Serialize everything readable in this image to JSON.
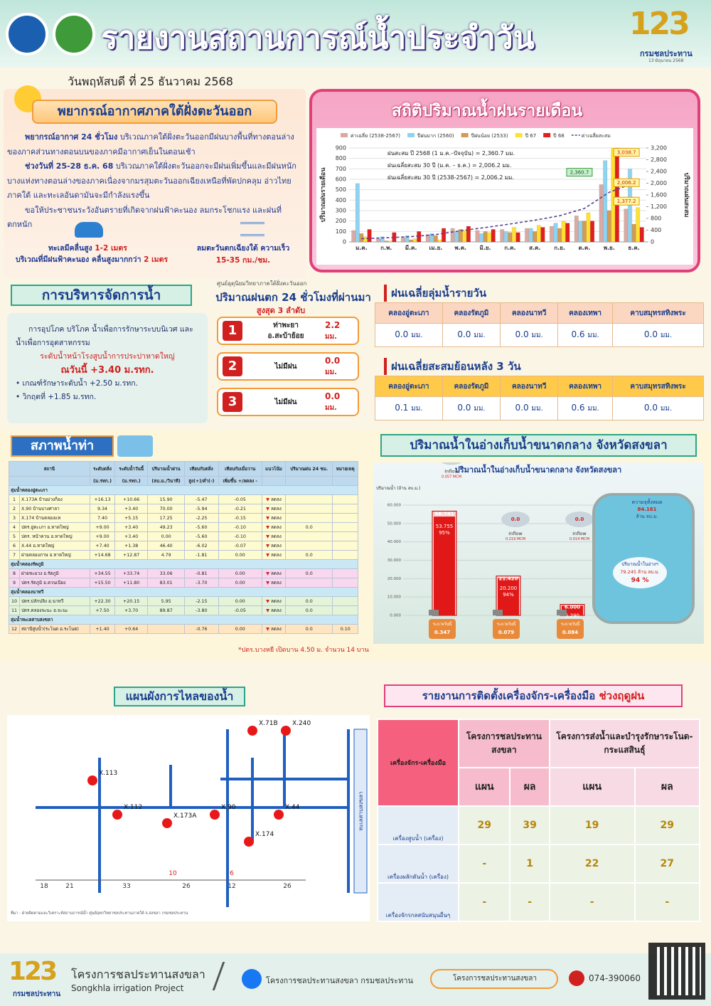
{
  "header": {
    "title": "รายงานสถานการณ์น้ำประจำวัน",
    "logo_number": "123",
    "logo_org": "กรมชลประทาน",
    "logo_date": "13 มิถุนายน 2568"
  },
  "date": "วันพฤหัสบดี ที่ 25 ธันวาคม 2568",
  "weather": {
    "title": "พยากรณ์อากาศภาคใต้ฝั่งตะวันออก",
    "paragraphs": [
      {
        "lead": "พยากรณ์อากาศ 24 ชั่วโมง",
        "text": "บริเวณภาคใต้ฝั่งตะวันออกมีฝนบางพื้นที่ทางตอนล่างของภาคส่วนทางตอนบนของภาคมีอากาศเย็นในตอนเช้า"
      },
      {
        "lead": "ช่วงวันที่ 25-28 ธ.ค. 68",
        "text": "บริเวณภาคใต้ฝั่งตะวันออกจะมีฝนเพิ่มขึ้นและมีฝนหนักบางแห่งทางตอนล่างของภาคเนื่องจากมรสุมตะวันออกเฉียงเหนือที่พัดปกคลุม อ่าวไทย ภาคใต้ และทะเลอันดามันจะมีกำลังแรงขึ้น"
      },
      {
        "lead": "ขอให้ประชาชนระวังอันตรายที่เกิดจากฝนฟ้าคะนอง ลมกระโชกแรง และฝนที่ตกหนัก",
        "text": null
      }
    ],
    "wave_title": "ทะเลมีคลื่นสูง",
    "wave_height": "1-2 เมตร",
    "wave_storm": "บริเวณที่มีฝนฟ้าคะนอง คลื่นสูงมากกว่า",
    "wave_storm_height": "2 เมตร",
    "wind": "ลมตะวันตกเฉียงใต้ ความเร็ว",
    "wind_speed": "15-35 กม./ชม."
  },
  "chart_data": {
    "type": "bar",
    "title": "สถิติปริมาณน้ำฝนรายเดือน",
    "ylabel": "ปริมาณฝนรายเดือน",
    "y2label": "ปริมาณฝนสะสม",
    "categories": [
      "ม.ค.",
      "ก.พ.",
      "มี.ค.",
      "เม.ย.",
      "พ.ค.",
      "มิ.ย.",
      "ก.ค.",
      "ส.ค.",
      "ก.ย.",
      "ต.ค.",
      "พ.ย.",
      "ธ.ค."
    ],
    "series": [
      {
        "name": "ค่าเฉลี่ย (2538-2567)",
        "color": "#d9aaa3",
        "values": [
          110,
          30,
          40,
          70,
          130,
          110,
          120,
          130,
          150,
          250,
          550,
          316
        ]
      },
      {
        "name": "ปีฝนมาก (2560)",
        "color": "#8fd3f0",
        "values": [
          560,
          50,
          60,
          80,
          100,
          80,
          100,
          130,
          180,
          200,
          780,
          700
        ]
      },
      {
        "name": "ปีฝนน้อย (2533)",
        "color": "#d29a55",
        "values": [
          80,
          10,
          20,
          60,
          120,
          100,
          90,
          100,
          130,
          200,
          300,
          170
        ]
      },
      {
        "name": "ปี 67",
        "color": "#ffe033",
        "values": [
          50,
          10,
          30,
          20,
          110,
          90,
          140,
          160,
          200,
          280,
          900,
          330
        ]
      },
      {
        "name": "ปี 68",
        "color": "#e02020",
        "values": [
          120,
          90,
          100,
          130,
          150,
          120,
          90,
          140,
          180,
          200,
          900,
          140
        ]
      },
      {
        "name": "ค่าเฉลี่ยสะสม",
        "color": "#5b3f8f",
        "type": "line",
        "line_style": "dashed",
        "axis": "y2",
        "values": [
          110,
          140,
          180,
          250,
          380,
          490,
          610,
          740,
          890,
          1140,
          1690,
          2006
        ]
      }
    ],
    "ylim": [
      0,
      900
    ],
    "yticks": [
      0,
      100,
      200,
      300,
      400,
      500,
      600,
      700,
      800,
      900
    ],
    "y2lim": [
      0,
      3200
    ],
    "y2ticks": [
      0,
      400,
      800,
      {
        "value": 1200,
        "label": "1,200"
      },
      {
        "value": 1600,
        "label": "1,600"
      },
      {
        "value": 2000,
        "label": "2,000"
      },
      {
        "value": 2400,
        "label": "2,400"
      },
      {
        "value": 2800,
        "label": "2,800"
      },
      {
        "value": 3200,
        "label": "3,200"
      }
    ],
    "grid": true,
    "annotations": [
      "ฝนสะสม ปี 2568 (1 ม.ค.–ปัจจุบัน) = 2,360.7 มม.",
      "ฝนเฉลี่ยสะสม 30 ปี (ม.ค. – ธ.ค.) = 2,006.2 มม.",
      "ฝนเฉลี่ยสะสม 30 ปี (2538-2567) = 2,006.2 มม."
    ],
    "point_labels": [
      {
        "value": 3038.7,
        "label": "3,038.7"
      },
      {
        "value": 2006.2,
        "label": "2,006.2"
      },
      {
        "value": 1377.2,
        "label": "1,377.2"
      },
      {
        "value": 2360.7,
        "label": "2,360.7"
      }
    ]
  },
  "management": {
    "title": "การบริหารจัดการน้ำ",
    "text": "การอุปโภค บริโภค น้ำเพื่อการรักษาระบบนิเวศ และน้ำเพื่อการอุตสาหกรรม",
    "sub": "ระดับน้ำหน้าโรงสูบน้ำการประปาหาดใหญ่",
    "level": "ณวันนี้ +3.40 ม.รทก.",
    "bullets": [
      "เกณฑ์รักษาระดับน้ำ +2.50 ม.รทก.",
      "วิกฤตที่ +1.85 ม.รทก."
    ]
  },
  "rain_top": {
    "source": "ศูนย์อุตุนิยมวิทยาภาคใต้ฝั่งตะวันออก",
    "title": "ปริมาณฝนตก 24 ชั่วโมงที่ผ่านมา",
    "subtitle": "สูงสุด 3 ลำดับ",
    "unit": "มม.",
    "items": [
      {
        "rank": "1",
        "station": [
          "ท่าพะยา",
          "อ.สะบ้าย้อย"
        ],
        "amount": "2.2"
      },
      {
        "rank": "2",
        "station": [
          "ไม่มีฝน"
        ],
        "amount": "0.0"
      },
      {
        "rank": "3",
        "station": [
          "ไม่มีฝน"
        ],
        "amount": "0.0"
      }
    ]
  },
  "basin_daily": {
    "title": "ฝนเฉลี่ยลุ่มน้ำรายวัน",
    "headers": [
      "คลองอู่ตะเภา",
      "คลองรัตภูมิ",
      "คลองนาทวี",
      "คลองเทพา",
      "คาบสมุทรสทิงพระ"
    ],
    "values": [
      "0.0",
      "0.0",
      "0.0",
      "0.6",
      "0.0"
    ],
    "unit": "มม."
  },
  "basin_3day": {
    "title": "ฝนเฉลี่ยสะสมย้อนหลัง 3 วัน",
    "headers": [
      "คลองอู่ตะเภา",
      "คลองรัตภูมิ",
      "คลองนาทวี",
      "คลองเทพา",
      "คาบสมุทรสทิงพระ"
    ],
    "values": [
      "0.1",
      "0.0",
      "0.0",
      "0.6",
      "0.0"
    ],
    "unit": "มม."
  },
  "water_table": {
    "title": "สภาพน้ำท่า",
    "columns": [
      "สถานี",
      "ระดับตลิ่ง",
      "ระดับน้ำวันนี้",
      "ปริมาณน้ำผ่าน",
      "เทียบกับตลิ่ง",
      "เทียบกับเมื่อวาน",
      "แนวโน้ม",
      "ปริมาณฝน 24 ชม.",
      "หมายเหตุ"
    ],
    "units": [
      "(ม.รทก.)",
      "(ม.รทก.)",
      "(ลบ.ม./วินาที)",
      "สูง(+)/ต่ำ(-)",
      "เพิ่มขึ้น +/ลดลง -"
    ],
    "groups": [
      {
        "name": "ลุ่มน้ำคลองอู่ตะเภา",
        "rows": [
          [
            "1",
            "X.173A บ้านม่วงก็อง",
            "+16.13",
            "+10.66",
            "15.90",
            "-5.47",
            "-0.05",
            "ลดลง",
            null,
            null
          ],
          [
            "2",
            "X.90 บ้านบางศาลา",
            "9.34",
            "+3.40",
            "70.00",
            "-5.94",
            "-0.21",
            "ลดลง",
            null,
            null
          ],
          [
            "3",
            "X.174 บ้านคลองแห",
            "7.40",
            "+5.15",
            "17.25",
            "-2.25",
            "-0.15",
            "ลดลง",
            null,
            null
          ],
          [
            "4",
            "ปตร.อู่ตะเภา อ.หาดใหญ่",
            "+9.00",
            "+3.40",
            "49.23",
            "-5.60",
            "-0.10",
            "ลดลง",
            "0.0",
            null
          ],
          [
            "5",
            "ปตร. หน้าควน อ.หาดใหญ่",
            "+9.00",
            "+3.40",
            "0.00",
            "-5.60",
            "-0.10",
            "ลดลง",
            null,
            null
          ],
          [
            "6",
            "X.44 อ.หาดใหญ่",
            "+7.40",
            "+1.38",
            "46.40",
            "-6.02",
            "-0.07",
            "ลดลง",
            null,
            null
          ],
          [
            "7",
            "ฝายคลองภาษ อ.หาดใหญ่",
            "+14.68",
            "+12.87",
            "4.79",
            "-1.81",
            "0.00",
            "ลดลง",
            "0.0",
            null
          ]
        ]
      },
      {
        "name": "ลุ่มน้ำคลองรัตภูมิ",
        "rows": [
          [
            "8",
            "ฝายชะมวง อ.รัตภูมิ",
            "+34.55",
            "+33.74",
            "33.06",
            "-0.81",
            "0.00",
            "ลดลง",
            "0.0",
            null
          ],
          [
            "9",
            "ปตร.รัตภูมิ อ.ควนเนียง",
            "+15.50",
            "+11.80",
            "83.01",
            "-3.70",
            "0.00",
            "ลดลง",
            null,
            null
          ]
        ]
      },
      {
        "name": "ลุ่มน้ำคลองนาทวี",
        "rows": [
          [
            "10",
            "ปตร.ปลักปลิง อ.นาทวี",
            "+22.30",
            "+20.15",
            "5.95",
            "-2.15",
            "0.00",
            "ลดลง",
            "0.0",
            null
          ],
          [
            "11",
            "ปตร.คลองจะนะ อ.จะนะ",
            "+7.50",
            "+3.70",
            "89.87",
            "-3.80",
            "-0.05",
            "ลดลง",
            "0.0",
            null
          ]
        ]
      },
      {
        "name": "ลุ่มน้ำทะเลสาบสงขลา",
        "rows": [
          [
            "12",
            "สถานีสูบน้ำ(ระโนด อ.ระโนด)",
            "+1.40",
            "+0.64",
            null,
            "-0.76",
            "0.00",
            "ลดลง",
            "0.0",
            "0.10"
          ]
        ]
      }
    ],
    "footnote": "*ปตร.บางหยี เปิดบาน 4.50 ม. จำนวน 14 บาน"
  },
  "reservoir": {
    "title": "ปริมาณน้ำในอ่างเก็บน้ำขนาดกลาง จังหวัดสงขลา",
    "chart_title": "ปริมาณน้ำในอ่างเก็บน้ำขนาดกลาง จังหวัดสงขลา",
    "ylabel": "ปริมาณน้ำ (ล้าน ลบ.ม.)",
    "ylim": [
      0,
      60
    ],
    "yticks": [
      {
        "value": 0,
        "label": "0.000"
      },
      {
        "value": 10,
        "label": "10.000"
      },
      {
        "value": 20,
        "label": "20.000"
      },
      {
        "value": 30,
        "label": "30.000"
      },
      {
        "value": 40,
        "label": "40.000"
      },
      {
        "value": 50,
        "label": "50.000"
      },
      {
        "value": 60,
        "label": "60.000"
      }
    ],
    "inflow_label": "Inflow",
    "release_label": "ระบายวันนี้",
    "items": [
      {
        "capacity": 56.741,
        "volume": 53.755,
        "percent": "95%",
        "rain": "0.0",
        "inflow": "0.057 MCM",
        "release": "0.347"
      },
      {
        "capacity": {
          "value": 21.42,
          "label": "21.420"
        },
        "volume": {
          "value": 20.2,
          "label": "20.200"
        },
        "percent": "94%",
        "rain": "0.0",
        "inflow": "0.219 MCM",
        "release": "0.079"
      },
      {
        "capacity": {
          "value": 6,
          "label": "6.000"
        },
        "volume": {
          "value": 5.29,
          "label": "5.290"
        },
        "percent": "88%",
        "rain": "0.0",
        "inflow": "0.014 MCM",
        "release": "0.084"
      }
    ],
    "total_label": "ความจุทั้งหมด",
    "total": "84.161",
    "unit": "ล้าน ลบ.ม.",
    "current_label": "ปริมาณน้ำในอ่างฯ",
    "current": "79.245 ล้าน ลบ.ม.",
    "current_percent": "94 %"
  },
  "flow": {
    "title": "แผนผังการไหลของน้ำ",
    "stations": [
      "X.113",
      "X.112",
      "X.173A",
      "X.90",
      "X.71B",
      "X.240",
      "X.44",
      "X.174"
    ],
    "bottom_numbers": [
      "18",
      "21",
      "33",
      "26",
      "12",
      "26"
    ],
    "mid_numbers": [
      "10",
      "6"
    ],
    "lake": "ทะเลสาบสงขลา",
    "note": "ที่มา : ฝ่ายติดตามและวิเคราะห์สถานการณ์น้ำ ศูนย์อุทกวิทยาชลประทานภาคใต้ จ.สงขลา กรมชลประทาน"
  },
  "machines": {
    "title": "รายงานการติดตั้งเครื่องจักร-เครื่องมือ",
    "title_highlight": "ช่วงฤดูฝน",
    "corner": "เครื่องจักร-เครื่องมือ",
    "projects": [
      "โครงการชลประทานสงขลา",
      "โครงการส่งน้ำและบำรุงรักษาระโนด-กระแสสินธุ์"
    ],
    "plan": "แผน",
    "result": "ผล",
    "rows": [
      {
        "name": "เครื่องสูบน้ำ (เครื่อง)",
        "values": [
          "29",
          "39",
          "19",
          "29"
        ]
      },
      {
        "name": "เครื่องผลักดันน้ำ (เครื่อง)",
        "values": [
          "-",
          "1",
          "22",
          "27"
        ]
      },
      {
        "name": "เครื่องจักรกลสนับสนุนอื่นๆ",
        "values": [
          "-",
          "-",
          "-",
          "-"
        ]
      }
    ]
  },
  "footer": {
    "org_th": "โครงการชลประทานสงขลา",
    "org_en": "Songkhla irrigation Project",
    "facebook": "โครงการชลประทานสงขลา กรมชลประทาน",
    "website": "โครงการชลประทานสงขลา",
    "phone": "074-390060"
  }
}
